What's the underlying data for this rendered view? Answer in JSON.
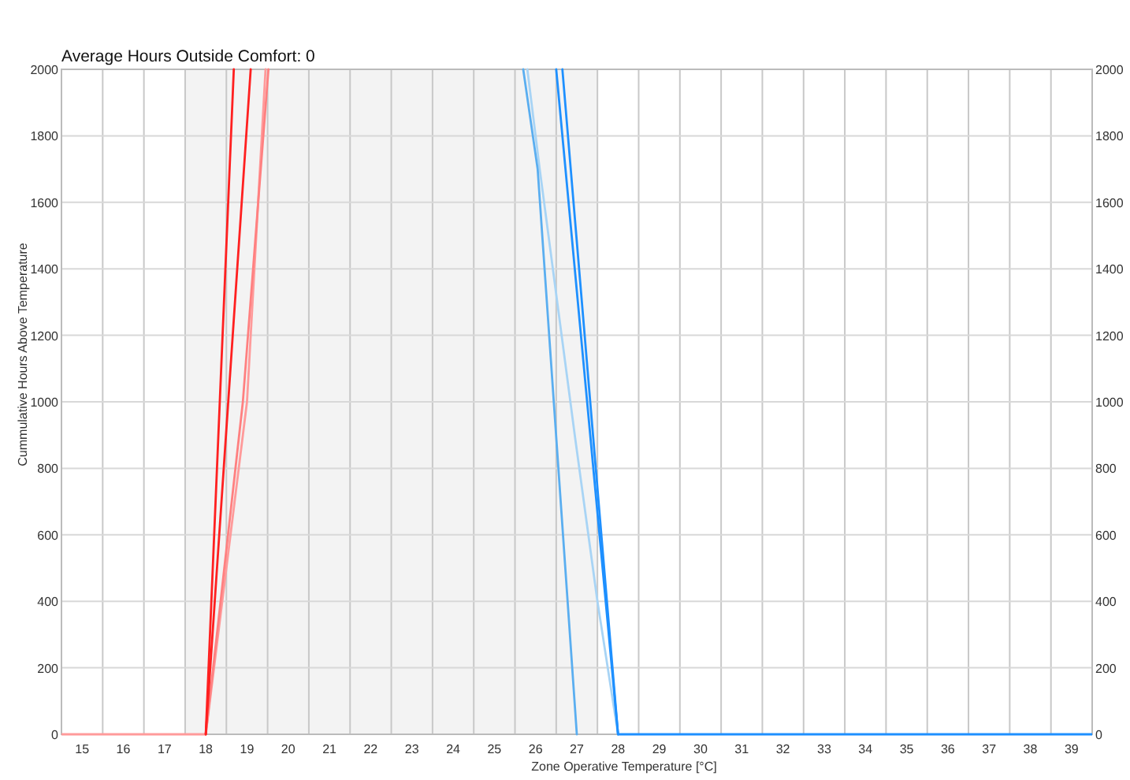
{
  "chart_data": {
    "type": "line",
    "title": "Average Hours Outside Comfort: 0",
    "xlabel": "Zone Operative Temperature [°C]",
    "ylabel": "Cummulative Hours Above Temperature",
    "xlim": [
      14.5,
      39.5
    ],
    "ylim": [
      0,
      2000
    ],
    "y2lim": [
      0,
      2000
    ],
    "xticks": [
      15,
      {
        "value": 15.5,
        "label": null
      },
      16,
      {
        "value": 16.5,
        "label": null
      },
      17,
      {
        "value": 17.5,
        "label": null
      },
      18,
      {
        "value": 18.5,
        "label": null
      },
      19,
      {
        "value": 19.5,
        "label": null
      },
      20,
      {
        "value": 20.5,
        "label": null
      },
      21,
      {
        "value": 21.5,
        "label": null
      },
      22,
      {
        "value": 22.5,
        "label": null
      },
      23,
      {
        "value": 23.5,
        "label": null
      },
      24,
      {
        "value": 24.5,
        "label": null
      },
      25,
      {
        "value": 25.5,
        "label": null
      },
      26,
      {
        "value": 26.5,
        "label": null
      },
      27,
      {
        "value": 27.5,
        "label": null
      },
      28,
      {
        "value": 28.5,
        "label": null
      },
      29,
      {
        "value": 29.5,
        "label": null
      },
      30,
      {
        "value": 30.5,
        "label": null
      },
      31,
      {
        "value": 31.5,
        "label": null
      },
      32,
      {
        "value": 32.5,
        "label": null
      },
      33,
      {
        "value": 33.5,
        "label": null
      },
      34,
      {
        "value": 34.5,
        "label": null
      },
      35,
      {
        "value": 35.5,
        "label": null
      },
      36,
      {
        "value": 36.5,
        "label": null
      },
      37,
      {
        "value": 37.5,
        "label": null
      },
      38,
      {
        "value": 38.5,
        "label": null
      },
      39
    ],
    "yticks": [
      0,
      200,
      400,
      600,
      800,
      1000,
      1200,
      1400,
      1600,
      1800,
      2000
    ],
    "y2ticks": [
      0,
      200,
      400,
      600,
      800,
      1000,
      1200,
      1400,
      1600,
      1800,
      2000
    ],
    "grid": true,
    "marker": "none",
    "line_style": "solid",
    "bands": [
      {
        "axis": "x",
        "from": 17.5,
        "to": 27.5,
        "color": "#f3f3f3"
      }
    ],
    "series": [
      {
        "color": "#ff9a9a",
        "x": [
          14.5,
          18,
          19.0,
          19.45
        ],
        "values": [
          0,
          0,
          1000,
          2000
        ]
      },
      {
        "color": "#ff8080",
        "x": [
          18,
          18.9,
          19.52
        ],
        "values": [
          0,
          1000,
          2000
        ]
      },
      {
        "color": "#ff2020",
        "x": [
          18,
          18.68
        ],
        "values": [
          0,
          2000
        ]
      },
      {
        "color": "#ff2020",
        "x": [
          18,
          19.09
        ],
        "values": [
          0,
          2000
        ]
      },
      {
        "color": "#a8d4f5",
        "x": [
          25.8,
          26.1,
          26.95,
          27.5,
          28
        ],
        "values": [
          2000,
          1700,
          900,
          400,
          0
        ]
      },
      {
        "color": "#5aaef0",
        "x": [
          25.7,
          26.05,
          27
        ],
        "values": [
          2000,
          1700,
          0
        ]
      },
      {
        "color": "#1e90ff",
        "x": [
          26.5,
          28
        ],
        "values": [
          2000,
          0
        ]
      },
      {
        "color": "#1e90ff",
        "x": [
          26.65,
          28,
          39.5
        ],
        "values": [
          2000,
          0,
          0
        ]
      }
    ]
  }
}
